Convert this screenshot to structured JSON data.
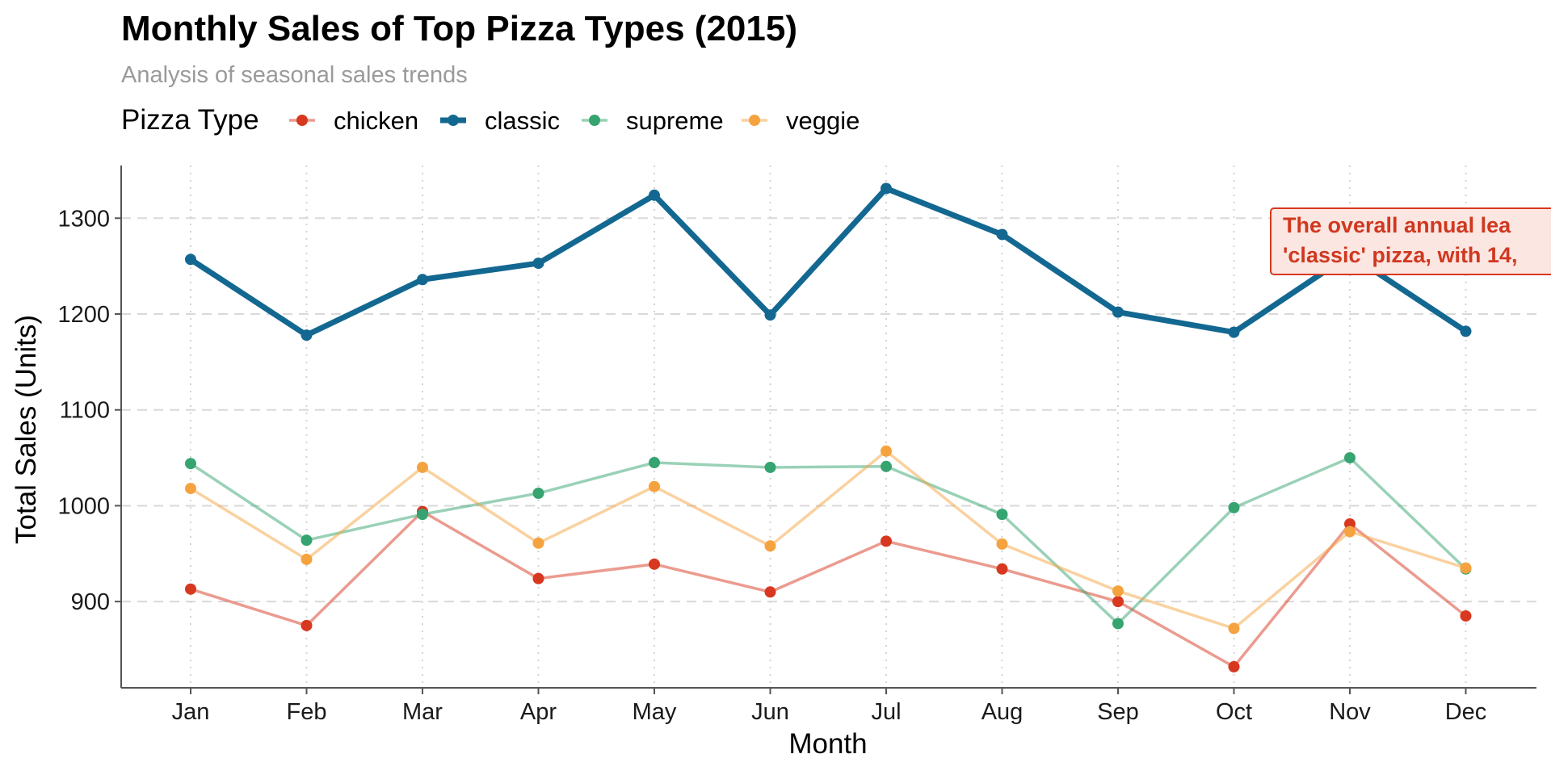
{
  "chart_data": {
    "type": "line",
    "title": "Monthly Sales of Top Pizza Types (2015)",
    "subtitle": "Analysis of seasonal sales trends",
    "xlabel": "Month",
    "ylabel": "Total Sales (Units)",
    "legend_title": "Pizza Type",
    "legend_position": "top-left",
    "categories": [
      "Jan",
      "Feb",
      "Mar",
      "Apr",
      "May",
      "Jun",
      "Jul",
      "Aug",
      "Sep",
      "Oct",
      "Nov",
      "Dec"
    ],
    "ylim": [
      810,
      1355
    ],
    "yticks": [
      900,
      1000,
      1100,
      1200,
      1300
    ],
    "grid": true,
    "series": [
      {
        "name": "chicken",
        "color": "#D7381F",
        "values": [
          913,
          875,
          994,
          924,
          939,
          910,
          963,
          934,
          900,
          832,
          981,
          885
        ]
      },
      {
        "name": "classic",
        "color": "#136891",
        "values": [
          1257,
          1178,
          1236,
          1253,
          1324,
          1199,
          1331,
          1283,
          1202,
          1181,
          1262,
          1182
        ]
      },
      {
        "name": "supreme",
        "color": "#36A470",
        "values": [
          1044,
          964,
          991,
          1013,
          1045,
          1040,
          1041,
          991,
          877,
          998,
          1050,
          934
        ]
      },
      {
        "name": "veggie",
        "color": "#F5A33F",
        "values": [
          1018,
          944,
          1040,
          961,
          1020,
          958,
          1057,
          960,
          911,
          872,
          973,
          935
        ]
      }
    ],
    "annotation": {
      "lines": [
        "The overall annual lea",
        "'classic' pizza, with 14,"
      ],
      "color": "#D7381F",
      "fill": "#FBE6E2"
    }
  }
}
